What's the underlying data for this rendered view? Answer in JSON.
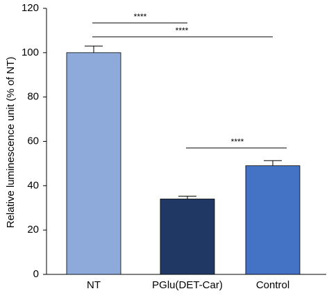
{
  "chart_data": {
    "type": "bar",
    "y_label": "Relative  luminescence  unit  (% of NT)",
    "categories": [
      "NT",
      "PGlu(DET-Car)",
      "Control"
    ],
    "values": [
      100,
      34,
      49
    ],
    "errors": [
      3,
      1.3,
      2.3
    ],
    "colors": [
      "#8eaadb",
      "#203864",
      "#4472c4"
    ],
    "ylim": [
      0,
      120
    ],
    "yticks": [
      0,
      20,
      40,
      60,
      80,
      100,
      120
    ],
    "annotations": [
      "****",
      "****",
      "****"
    ]
  }
}
